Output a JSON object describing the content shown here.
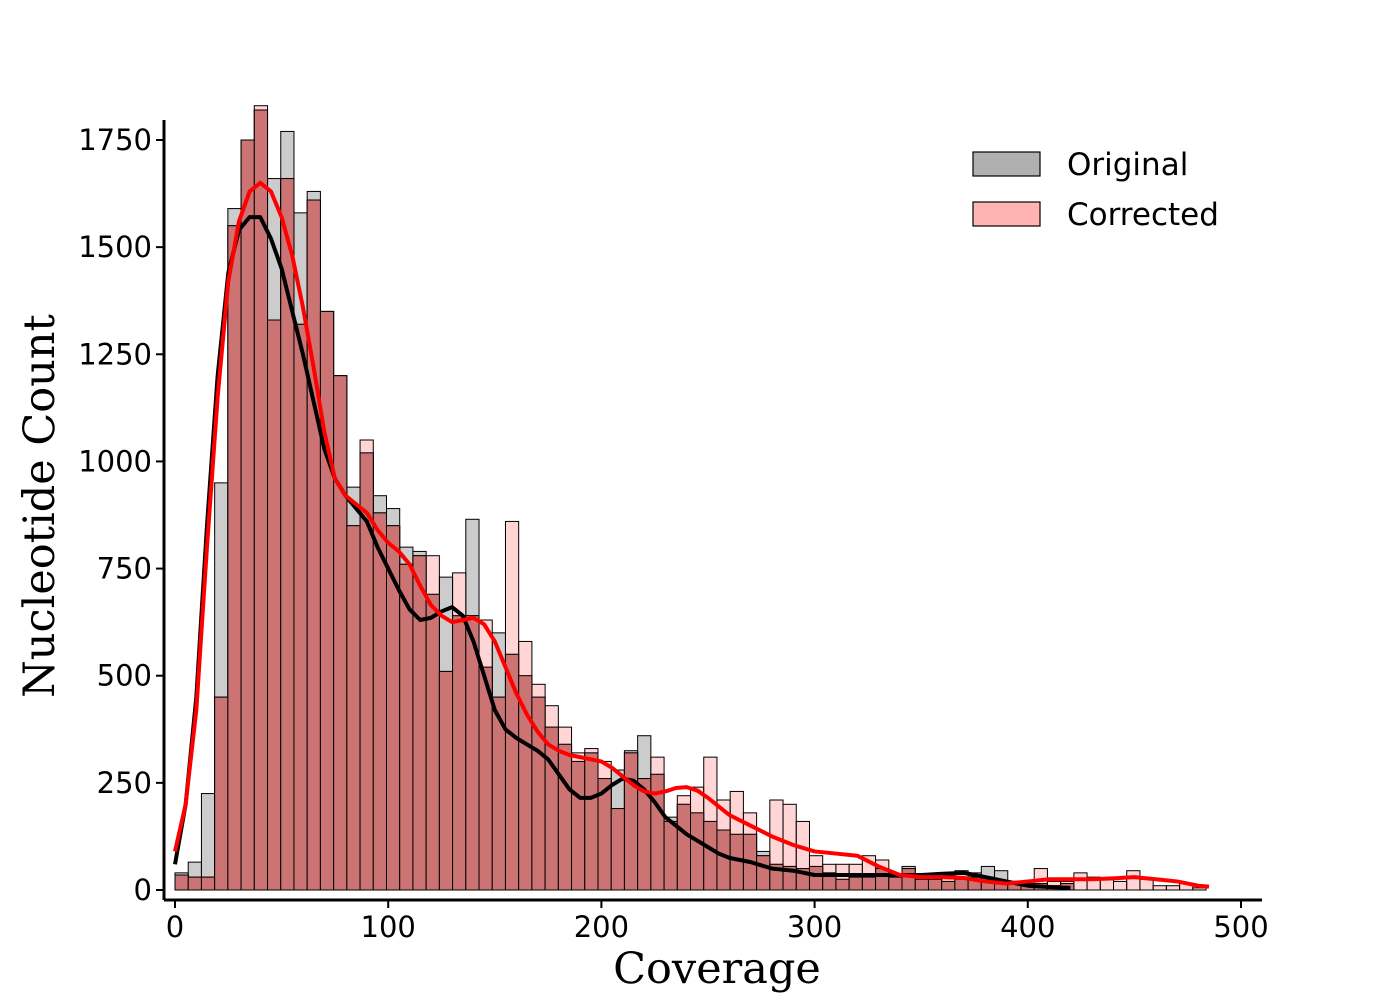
{
  "chart_data": {
    "type": "histogram",
    "title": "",
    "xlabel": "Coverage",
    "ylabel": "Nucleotide Count",
    "xlim": [
      -2,
      508
    ],
    "ylim": [
      -20,
      1925
    ],
    "xticks": [
      0,
      100,
      200,
      300,
      400,
      500
    ],
    "yticks": [
      0,
      250,
      500,
      750,
      1000,
      1250,
      1500,
      1750
    ],
    "bin_width": 6.2,
    "colors": {
      "original_fill": "#b0b0b0",
      "corrected_fill": "#ffb3b3",
      "overlap_fill": "#cc7474",
      "edge": "#000000",
      "original_kde": "#000000",
      "corrected_kde": "#ff0000"
    },
    "legend": {
      "position": "upper-right",
      "entries": [
        {
          "label": "Original",
          "color": "#b0b0b0"
        },
        {
          "label": "Corrected",
          "color": "#ffb3b3"
        }
      ]
    },
    "series": [
      {
        "name": "Original",
        "bin_starts": [
          0,
          6.2,
          12.4,
          18.6,
          24.8,
          31,
          37.2,
          43.4,
          49.6,
          55.8,
          62,
          68.2,
          74.4,
          80.6,
          86.8,
          93,
          99.2,
          105.4,
          111.6,
          117.8,
          124,
          130.2,
          136.4,
          142.6,
          148.8,
          155,
          161.2,
          167.4,
          173.6,
          179.8,
          186,
          192.2,
          198.4,
          204.6,
          210.8,
          217,
          223.2,
          229.4,
          235.6,
          241.8,
          248,
          254.2,
          260.4,
          266.6,
          272.8,
          279,
          285.2,
          291.4,
          297.6,
          303.8,
          310,
          316.2,
          322.4,
          328.6,
          334.8,
          341,
          347.2,
          353.4,
          359.6,
          365.8,
          372,
          378.2,
          384.4,
          390.6,
          396.8,
          403,
          409.2,
          415.4
        ],
        "values": [
          40,
          65,
          225,
          950,
          1590,
          1750,
          1820,
          1660,
          1770,
          1580,
          1630,
          1350,
          1200,
          940,
          1020,
          920,
          890,
          800,
          790,
          690,
          730,
          640,
          865,
          520,
          600,
          550,
          500,
          450,
          380,
          340,
          300,
          320,
          260,
          280,
          325,
          360,
          270,
          170,
          200,
          180,
          160,
          140,
          130,
          130,
          90,
          60,
          55,
          50,
          55,
          40,
          25,
          30,
          30,
          50,
          35,
          55,
          25,
          25,
          20,
          25,
          40,
          55,
          45,
          20,
          10,
          15,
          10,
          15
        ]
      },
      {
        "name": "Corrected",
        "bin_starts": [
          0,
          6.2,
          12.4,
          18.6,
          24.8,
          31,
          37.2,
          43.4,
          49.6,
          55.8,
          62,
          68.2,
          74.4,
          80.6,
          86.8,
          93,
          99.2,
          105.4,
          111.6,
          117.8,
          124,
          130.2,
          136.4,
          142.6,
          148.8,
          155,
          161.2,
          167.4,
          173.6,
          179.8,
          186,
          192.2,
          198.4,
          204.6,
          210.8,
          217,
          223.2,
          229.4,
          235.6,
          241.8,
          248,
          254.2,
          260.4,
          266.6,
          272.8,
          279,
          285.2,
          291.4,
          297.6,
          303.8,
          310,
          316.2,
          322.4,
          328.6,
          334.8,
          341,
          347.2,
          353.4,
          359.6,
          365.8,
          372,
          378.2,
          384.4,
          390.6,
          396.8,
          403,
          409.2,
          415.4,
          421.6,
          427.8,
          434,
          440.2,
          446.4,
          452.6,
          458.8,
          465,
          471.2,
          477.4
        ],
        "values": [
          35,
          30,
          30,
          450,
          1550,
          1750,
          1830,
          1330,
          1660,
          1320,
          1610,
          1350,
          1200,
          850,
          1050,
          880,
          850,
          760,
          780,
          780,
          510,
          740,
          640,
          630,
          450,
          860,
          580,
          480,
          430,
          380,
          320,
          330,
          300,
          190,
          320,
          260,
          310,
          160,
          220,
          240,
          310,
          210,
          230,
          180,
          80,
          210,
          200,
          160,
          80,
          60,
          60,
          60,
          80,
          70,
          30,
          50,
          35,
          35,
          35,
          45,
          30,
          30,
          15,
          20,
          15,
          50,
          20,
          20,
          40,
          30,
          25,
          20,
          45,
          25,
          10,
          10,
          15,
          5
        ]
      }
    ],
    "kde": [
      {
        "name": "Original",
        "x": [
          0,
          5,
          10,
          15,
          20,
          25,
          30,
          35,
          40,
          45,
          50,
          55,
          60,
          65,
          70,
          75,
          80,
          85,
          90,
          95,
          100,
          105,
          110,
          115,
          120,
          125,
          130,
          135,
          140,
          145,
          150,
          155,
          160,
          165,
          170,
          175,
          180,
          185,
          190,
          195,
          200,
          205,
          210,
          215,
          220,
          225,
          230,
          235,
          240,
          245,
          250,
          255,
          260,
          270,
          280,
          290,
          300,
          310,
          320,
          330,
          340,
          350,
          360,
          370,
          380,
          390,
          400,
          410,
          420
        ],
        "y": [
          60,
          200,
          450,
          850,
          1200,
          1440,
          1540,
          1570,
          1570,
          1520,
          1450,
          1350,
          1250,
          1140,
          1030,
          960,
          920,
          890,
          860,
          800,
          750,
          700,
          655,
          630,
          635,
          650,
          660,
          640,
          580,
          500,
          420,
          375,
          355,
          340,
          325,
          305,
          270,
          235,
          215,
          215,
          225,
          245,
          260,
          255,
          235,
          205,
          170,
          150,
          130,
          115,
          100,
          85,
          75,
          65,
          50,
          45,
          35,
          35,
          35,
          35,
          35,
          35,
          38,
          40,
          30,
          20,
          10,
          7,
          5
        ]
      },
      {
        "name": "Corrected",
        "x": [
          0,
          5,
          10,
          15,
          20,
          25,
          30,
          35,
          40,
          45,
          50,
          55,
          60,
          65,
          70,
          75,
          80,
          85,
          90,
          95,
          100,
          105,
          110,
          115,
          120,
          125,
          130,
          135,
          140,
          145,
          150,
          155,
          160,
          165,
          170,
          175,
          180,
          185,
          190,
          195,
          200,
          205,
          210,
          215,
          220,
          225,
          230,
          235,
          240,
          245,
          250,
          255,
          260,
          270,
          280,
          290,
          300,
          310,
          320,
          330,
          340,
          350,
          360,
          370,
          380,
          390,
          400,
          410,
          420,
          430,
          440,
          450,
          460,
          470,
          480,
          485
        ],
        "y": [
          90,
          200,
          420,
          800,
          1150,
          1420,
          1560,
          1630,
          1650,
          1630,
          1570,
          1480,
          1360,
          1220,
          1070,
          960,
          920,
          900,
          880,
          840,
          810,
          790,
          760,
          710,
          665,
          640,
          625,
          630,
          635,
          620,
          580,
          520,
          460,
          410,
          370,
          340,
          325,
          315,
          310,
          305,
          300,
          285,
          265,
          245,
          230,
          225,
          230,
          238,
          240,
          232,
          215,
          195,
          175,
          150,
          125,
          105,
          90,
          85,
          80,
          55,
          35,
          30,
          30,
          28,
          20,
          15,
          20,
          25,
          25,
          25,
          27,
          30,
          25,
          20,
          10,
          8
        ]
      }
    ]
  }
}
